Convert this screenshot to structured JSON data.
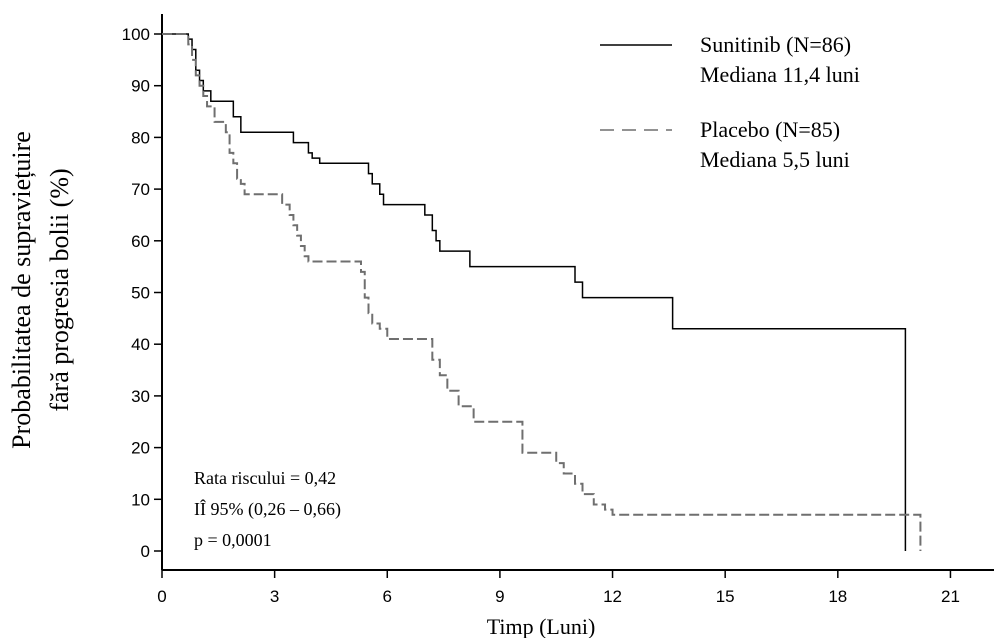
{
  "chart_data": {
    "type": "line",
    "step": true,
    "xlabel": "Timp (Luni)",
    "ylabel_line1": "Probabilitatea de supraviețuire",
    "ylabel_line2": "fără progresia bolii (%)",
    "xlim": [
      0,
      22
    ],
    "ylim": [
      0,
      100
    ],
    "xticks": [
      0,
      3,
      6,
      9,
      12,
      15,
      18,
      21
    ],
    "yticks": [
      0,
      10,
      20,
      30,
      40,
      50,
      60,
      70,
      80,
      90,
      100
    ],
    "grid": false,
    "legend_position": "top-right",
    "series": [
      {
        "name": "Sunitinib (N=86)",
        "subtitle": "Mediana 11,4 luni",
        "color": "#000000",
        "dash": "solid",
        "x": [
          0,
          0.7,
          0.8,
          0.9,
          1.0,
          1.1,
          1.3,
          1.9,
          2.1,
          3.5,
          3.9,
          4.0,
          4.1,
          4.2,
          5.5,
          5.6,
          5.8,
          5.9,
          6.1,
          7.0,
          7.2,
          7.3,
          7.4,
          7.5,
          8.2,
          11.0,
          11.2,
          11.4,
          13.6,
          19.8
        ],
        "y": [
          100,
          99,
          97,
          93,
          91,
          89,
          87,
          84,
          81,
          79,
          77,
          76,
          76,
          75,
          73,
          71,
          69,
          67,
          67,
          65,
          62,
          60,
          58,
          58,
          55,
          52,
          49,
          49,
          43,
          0
        ]
      },
      {
        "name": "Placebo (N=85)",
        "subtitle": "Mediana 5,5 luni",
        "color": "#6f6f6f",
        "dash": "dashed",
        "x": [
          0,
          0.7,
          0.8,
          0.9,
          1.0,
          1.1,
          1.2,
          1.4,
          1.7,
          1.8,
          1.9,
          2.0,
          2.1,
          2.2,
          2.5,
          3.2,
          3.4,
          3.5,
          3.6,
          3.7,
          3.8,
          3.9,
          4.0,
          5.3,
          5.4,
          5.5,
          5.6,
          5.8,
          6.0,
          7.0,
          7.2,
          7.4,
          7.6,
          7.9,
          8.3,
          9.6,
          10.5,
          10.7,
          11.0,
          11.2,
          11.5,
          11.8,
          12.0,
          20.2
        ],
        "y": [
          100,
          98,
          95,
          92,
          90,
          88,
          86,
          83,
          81,
          77,
          75,
          72,
          71,
          69,
          69,
          67,
          65,
          63,
          61,
          59,
          57,
          56,
          56,
          54,
          49,
          46,
          44,
          43,
          41,
          41,
          37,
          34,
          31,
          28,
          25,
          19,
          17,
          15,
          13,
          11,
          9,
          8,
          7,
          0
        ]
      }
    ],
    "annotations": [
      "Rata riscului = 0,42",
      "IÎ 95% (0,26 – 0,66)",
      "p = 0,0001"
    ]
  }
}
